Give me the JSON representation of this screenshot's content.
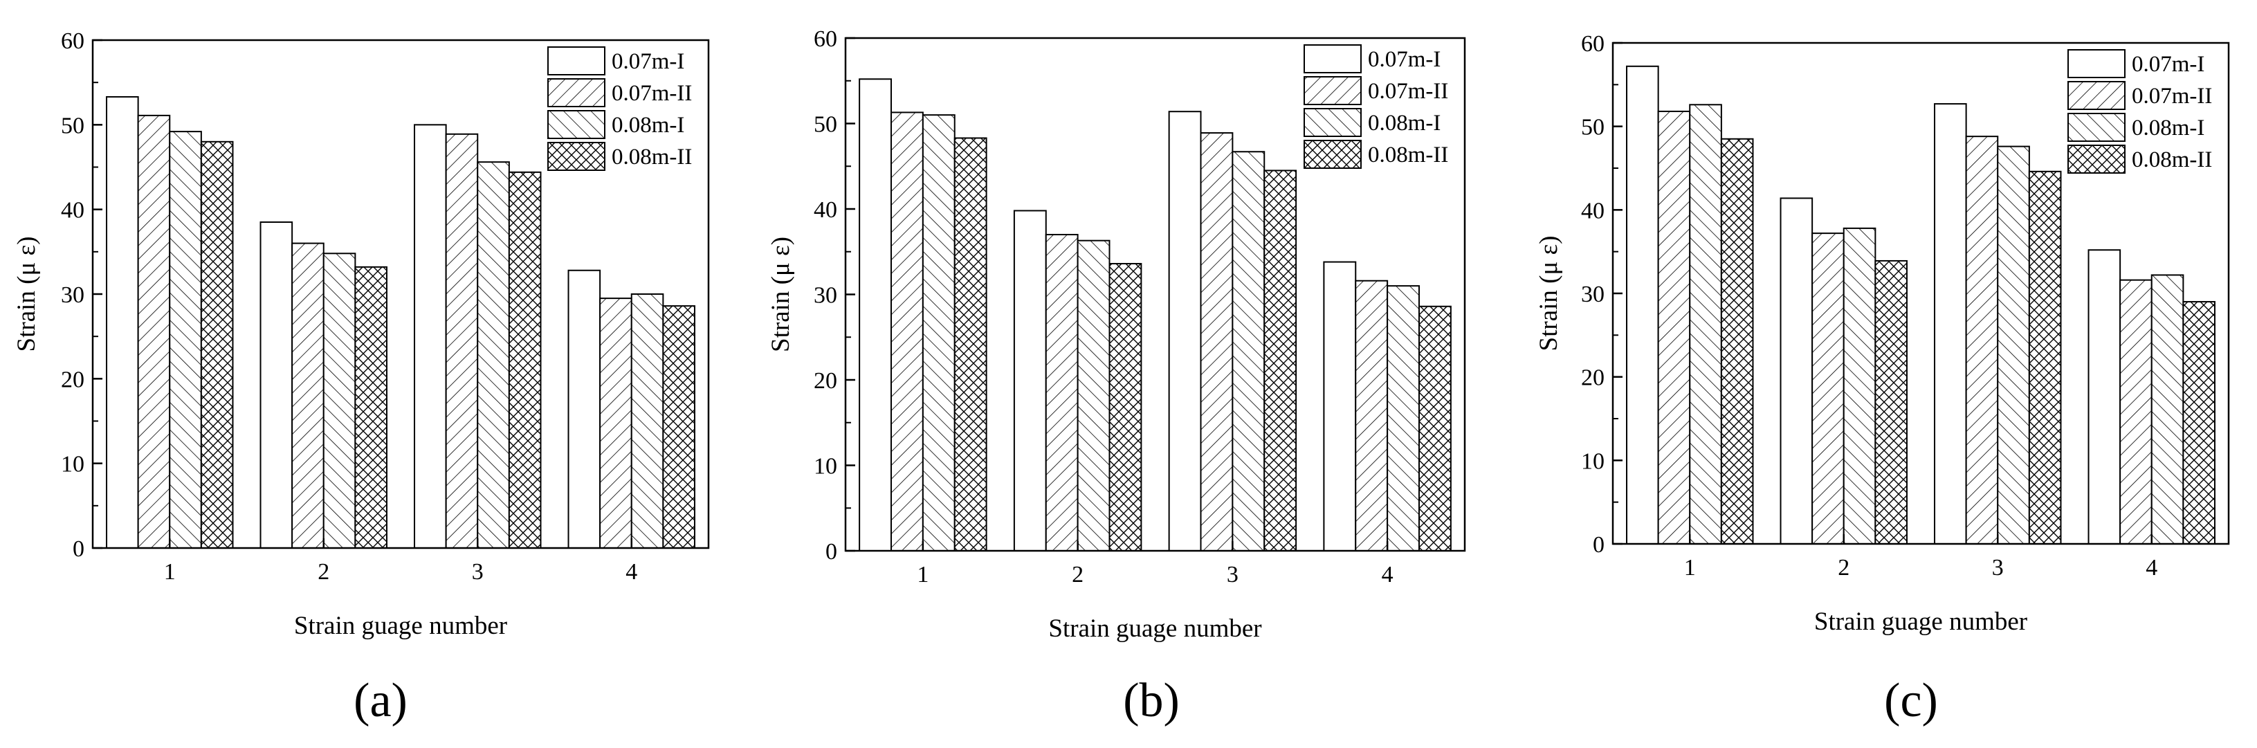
{
  "chart_data": [
    {
      "type": "bar",
      "panel_label": "(a)",
      "categories": [
        "1",
        "2",
        "3",
        "4"
      ],
      "series": [
        {
          "name": "0.07m-I",
          "values": [
            53.3,
            38.5,
            50.0,
            32.8
          ]
        },
        {
          "name": "0.07m-II",
          "values": [
            51.1,
            36.0,
            48.9,
            29.5
          ]
        },
        {
          "name": "0.08m-I",
          "values": [
            49.2,
            34.8,
            45.6,
            30.0
          ]
        },
        {
          "name": "0.08m-II",
          "values": [
            48.0,
            33.2,
            44.4,
            28.6
          ]
        }
      ],
      "xlabel": "Strain guage number",
      "ylabel": "Strain (μ ε)",
      "ylim": [
        0,
        60
      ],
      "yticks": [
        "0",
        "10",
        "20",
        "30",
        "40",
        "50",
        "60"
      ],
      "legend": "top-right",
      "grid": false
    },
    {
      "type": "bar",
      "panel_label": "(b)",
      "categories": [
        "1",
        "2",
        "3",
        "4"
      ],
      "series": [
        {
          "name": "0.07m-I",
          "values": [
            55.2,
            39.8,
            51.4,
            33.8
          ]
        },
        {
          "name": "0.07m-II",
          "values": [
            51.3,
            37.0,
            48.9,
            31.6
          ]
        },
        {
          "name": "0.08m-I",
          "values": [
            51.0,
            36.3,
            46.7,
            31.0
          ]
        },
        {
          "name": "0.08m-II",
          "values": [
            48.3,
            33.6,
            44.5,
            28.6
          ]
        }
      ],
      "xlabel": "Strain guage number",
      "ylabel": "Strain (μ ε)",
      "ylim": [
        0,
        60
      ],
      "yticks": [
        "0",
        "10",
        "20",
        "30",
        "40",
        "50",
        "60"
      ],
      "legend": "top-right",
      "grid": false
    },
    {
      "type": "bar",
      "panel_label": "(c)",
      "categories": [
        "1",
        "2",
        "3",
        "4"
      ],
      "series": [
        {
          "name": "0.07m-I",
          "values": [
            57.2,
            41.4,
            52.7,
            35.2
          ]
        },
        {
          "name": "0.07m-II",
          "values": [
            51.8,
            37.2,
            48.8,
            31.6
          ]
        },
        {
          "name": "0.08m-I",
          "values": [
            52.6,
            37.8,
            47.6,
            32.2
          ]
        },
        {
          "name": "0.08m-II",
          "values": [
            48.5,
            33.9,
            44.6,
            29.0
          ]
        }
      ],
      "xlabel": "Strain guage number",
      "ylabel": "Strain (μ ε)",
      "ylim": [
        0,
        60
      ],
      "yticks": [
        "0",
        "10",
        "20",
        "30",
        "40",
        "50",
        "60"
      ],
      "legend": "top-right",
      "grid": false
    }
  ]
}
